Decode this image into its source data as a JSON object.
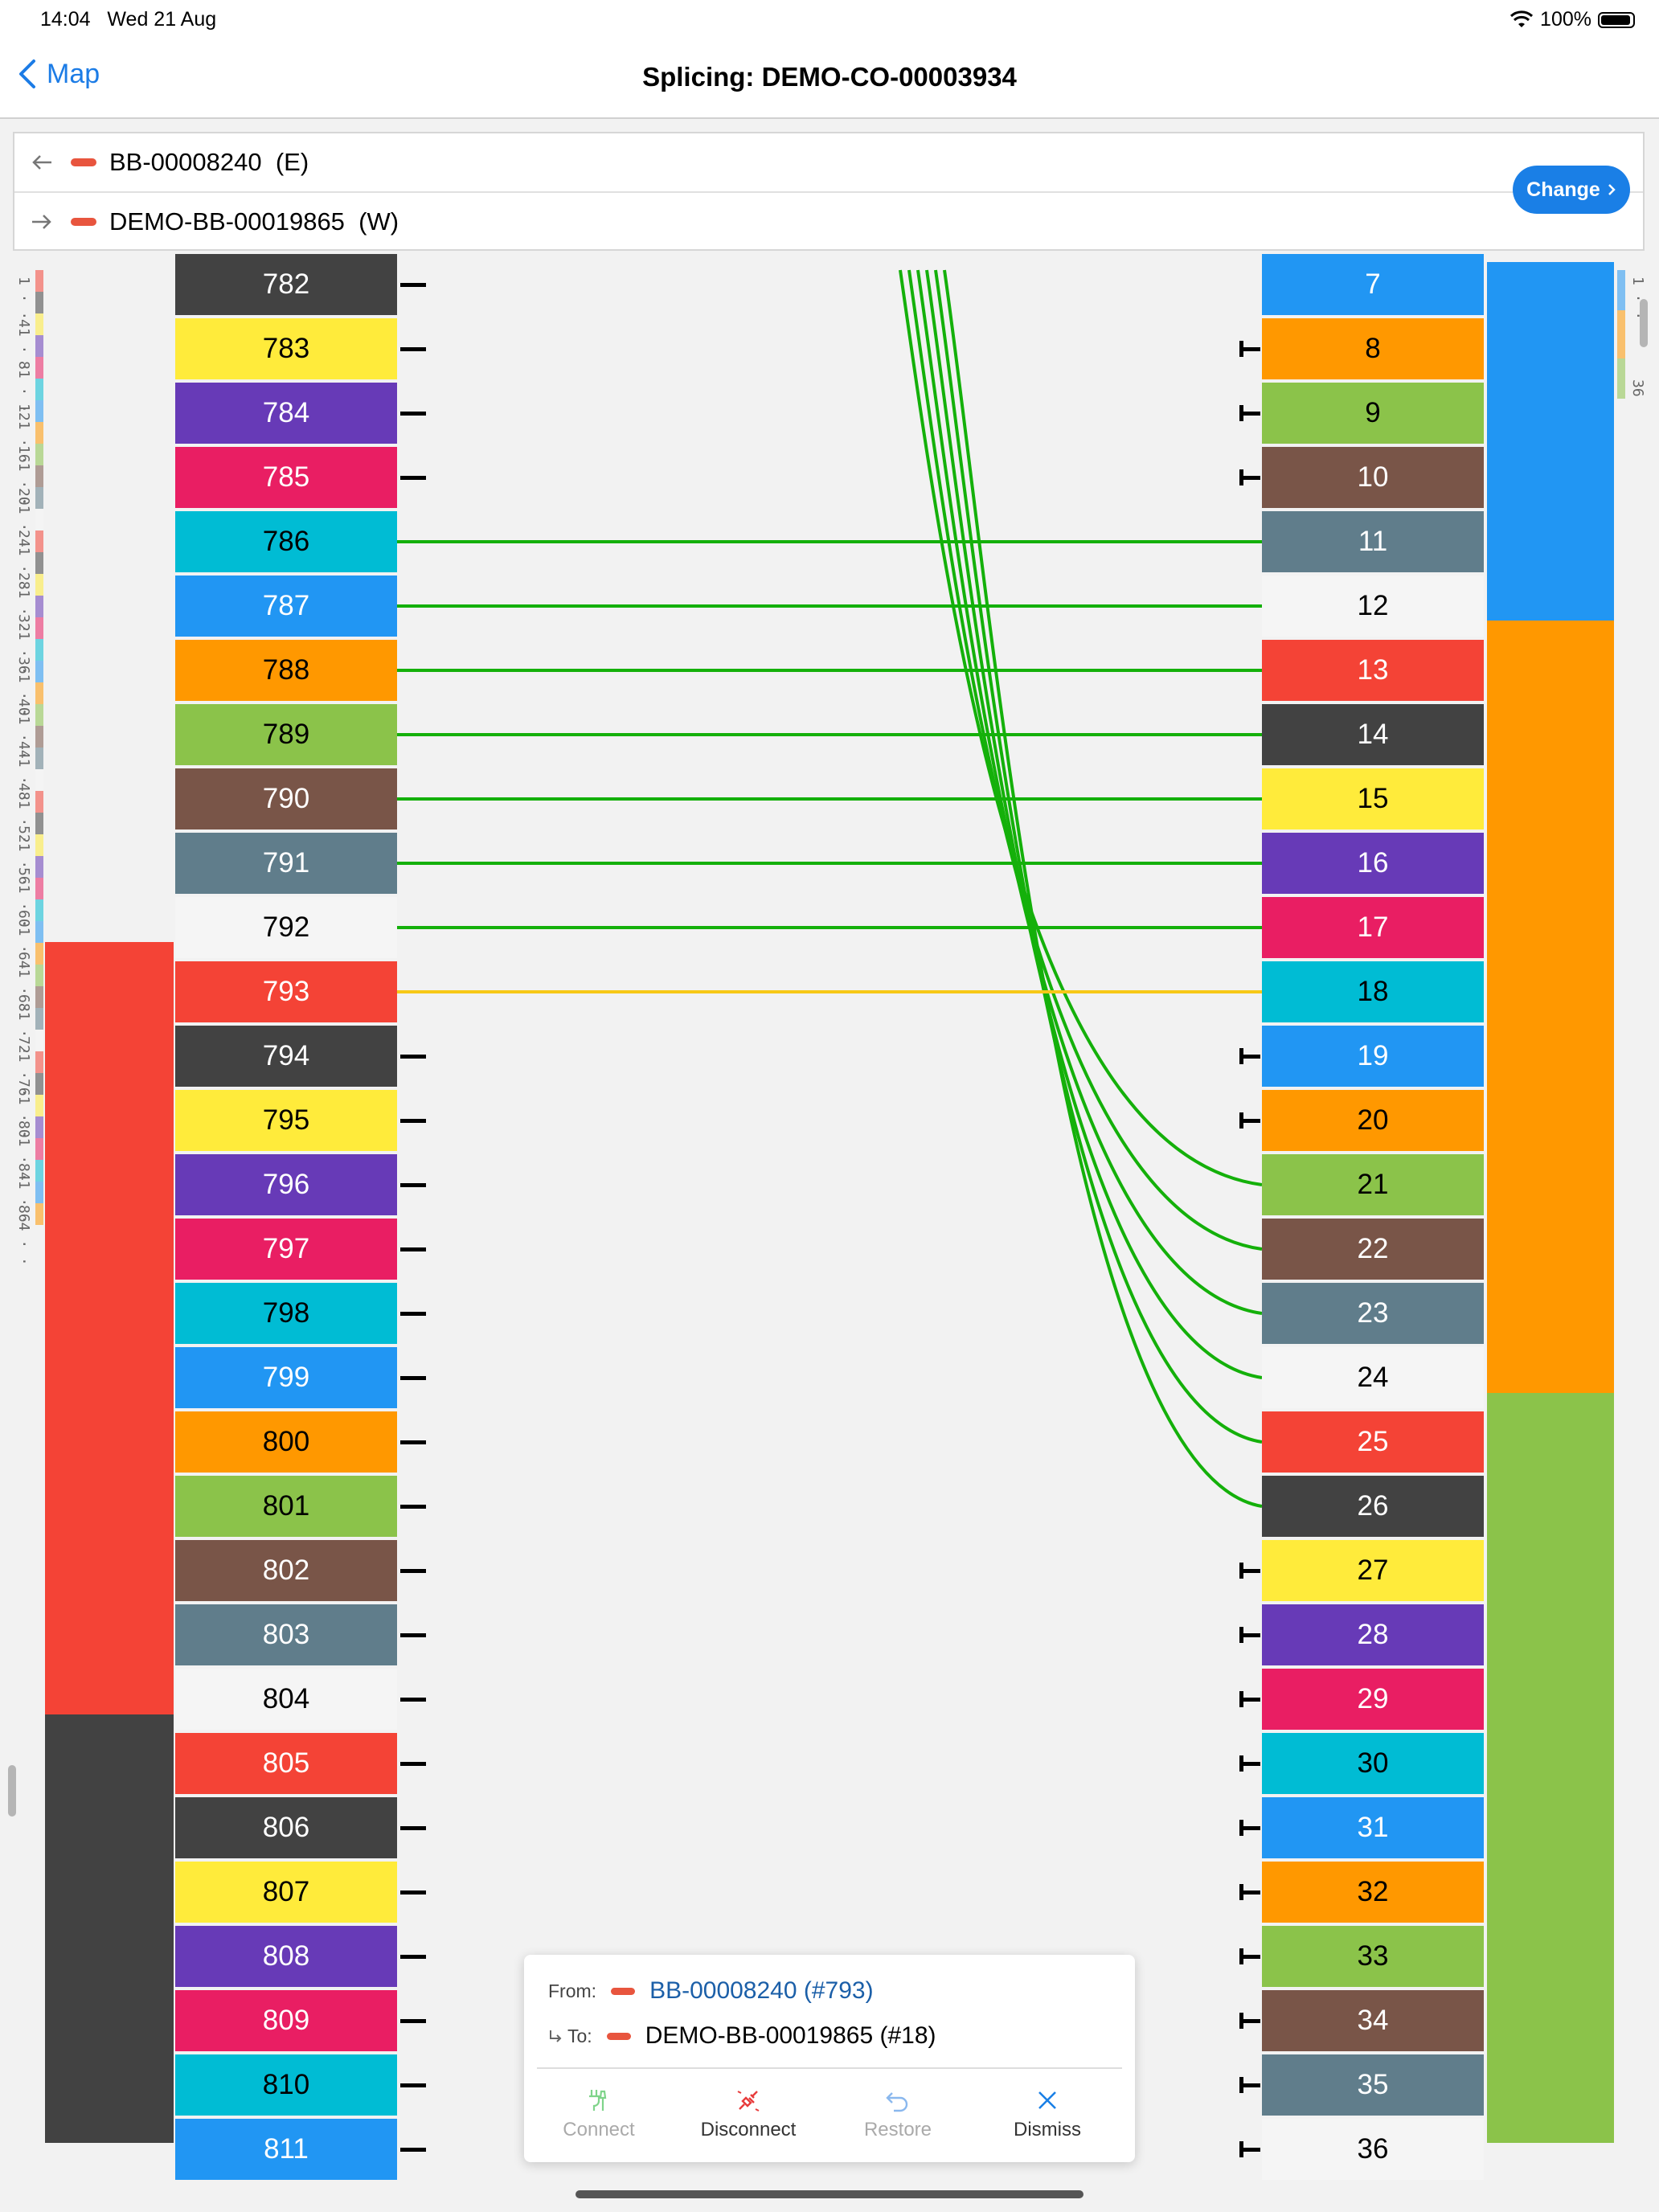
{
  "status_bar": {
    "time": "14:04",
    "date": "Wed 21 Aug",
    "battery": "100%"
  },
  "nav": {
    "back_label": "Map",
    "title": "Splicing: DEMO-CO-00003934"
  },
  "cables": {
    "from": {
      "name": "BB-00008240",
      "dir": "(E)"
    },
    "to": {
      "name": "DEMO-BB-00019865",
      "dir": "(W)"
    },
    "change_label": "Change"
  },
  "colors": {
    "pill": "#e8553e",
    "splice_line": "#14b00a",
    "selected_line": "#f7c817",
    "accent": "#1a7fe6",
    "fiber_cycle": [
      "#f44336",
      "#424242",
      "#ffeb3b",
      "#673ab7",
      "#e91e63",
      "#00bcd4",
      "#2196f3",
      "#ff9800",
      "#8bc34a",
      "#795548",
      "#607d8b",
      "#f5f5f5"
    ]
  },
  "left_fibers": [
    782,
    783,
    784,
    785,
    786,
    787,
    788,
    789,
    790,
    791,
    792,
    793,
    794,
    795,
    796,
    797,
    798,
    799,
    800,
    801,
    802,
    803,
    804,
    805,
    806,
    807,
    808,
    809,
    810,
    811
  ],
  "right_fibers": [
    7,
    8,
    9,
    10,
    11,
    12,
    13,
    14,
    15,
    16,
    17,
    18,
    19,
    20,
    21,
    22,
    23,
    24,
    25,
    26,
    27,
    28,
    29,
    30,
    31,
    32,
    33,
    34,
    35,
    36
  ],
  "left_minimap_labels": [
    "1",
    "41",
    "81",
    "121",
    "161",
    "201",
    "241",
    "281",
    "321",
    "361",
    "401",
    "441",
    "481",
    "521",
    "561",
    "601",
    "641",
    "681",
    "721",
    "761",
    "801",
    "841",
    "864"
  ],
  "right_minimap_labels": [
    "1",
    "36"
  ],
  "splices": {
    "straight": [
      [
        786,
        11
      ],
      [
        787,
        12
      ],
      [
        788,
        13
      ],
      [
        789,
        14
      ],
      [
        790,
        15
      ],
      [
        791,
        16
      ],
      [
        792,
        17
      ]
    ],
    "selected": [
      793,
      18
    ],
    "curved_to": [
      21,
      22,
      23,
      24,
      25,
      26
    ]
  },
  "popup": {
    "from_label": "From:",
    "from_value": "BB-00008240 (#793)",
    "to_label": "To:",
    "to_value": "DEMO-BB-00019865 (#18)",
    "actions": [
      {
        "label": "Connect",
        "icon": "connect-icon",
        "enabled": false,
        "color": "#7fd48a"
      },
      {
        "label": "Disconnect",
        "icon": "disconnect-icon",
        "enabled": true,
        "color": "#e83b3b"
      },
      {
        "label": "Restore",
        "icon": "restore-icon",
        "enabled": false,
        "color": "#8ab8ee"
      },
      {
        "label": "Dismiss",
        "icon": "dismiss-icon",
        "enabled": true,
        "color": "#1a7fe6"
      }
    ]
  }
}
